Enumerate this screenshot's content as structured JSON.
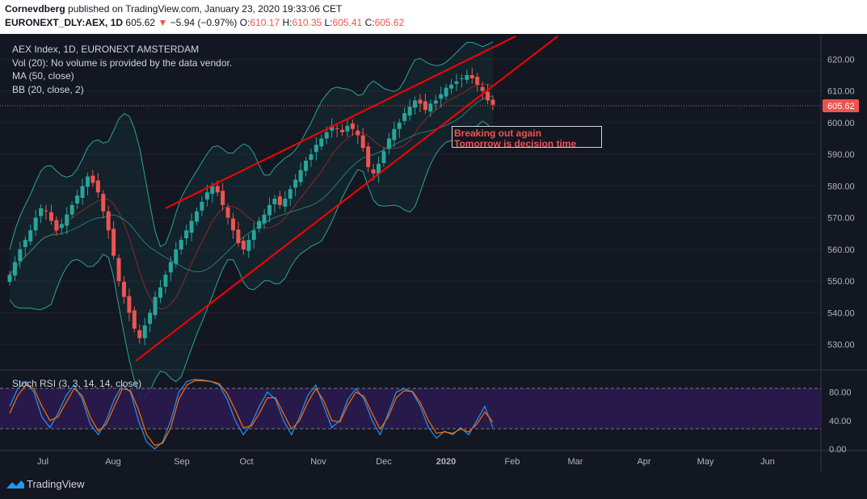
{
  "header": {
    "author": "Cornevdberg",
    "published_text": "published on TradingView.com, January 23, 2020 19:33:06 CET",
    "symbol": "EURONEXT_DLY:AEX, 1D",
    "last": "605.62",
    "change_arrow": "▼",
    "change": "−5.94 (−0.97%)",
    "o_label": "O:",
    "o": "610.17",
    "h_label": "H:",
    "h": "610.35",
    "l_label": "L:",
    "l": "605.41",
    "c_label": "C:",
    "c": "605.62"
  },
  "legend": {
    "title": "AEX Index, 1D, EURONEXT AMSTERDAM",
    "vol": "Vol (20): No volume is provided by the data vendor.",
    "ma": "MA (50, close)",
    "bb": "BB (20, close, 2)",
    "stoch": "Stoch RSI (3, 3, 14, 14, close)"
  },
  "annotation": {
    "line1": "Breaking out again",
    "line2": "Tomorrow is decision time"
  },
  "price_badge": "605.62",
  "footer": {
    "brand": "TradingView",
    "logo_icon": "tradingview-logo-icon"
  },
  "colors": {
    "background": "#131722",
    "up": "#26a69a",
    "down": "#ef5350",
    "trendline": "#ff0000",
    "ma": "#8b2a2a",
    "bollinger": "#26a69a",
    "stoch_k": "#2196f3",
    "stoch_d": "#ff6d00",
    "stoch_band": "#2a1b4f"
  },
  "chart_data": [
    {
      "type": "candlestick",
      "title": "AEX Index, 1D, EURONEXT AMSTERDAM",
      "ylim": [
        522,
        628
      ],
      "y_ticks": [
        "620.00",
        "610.00",
        "600.00",
        "590.00",
        "580.00",
        "570.00",
        "560.00",
        "550.00",
        "540.00",
        "530.00"
      ],
      "y_tick_values": [
        620,
        610,
        600,
        590,
        580,
        570,
        560,
        550,
        540,
        530
      ],
      "x_labels": [
        "Jul",
        "Aug",
        "Sep",
        "Oct",
        "Nov",
        "Dec",
        "2020",
        "Feb",
        "Mar",
        "Apr",
        "May",
        "Jun"
      ],
      "close_series": [
        552,
        556,
        560,
        563,
        566,
        570,
        573,
        572,
        569,
        566,
        568,
        571,
        574,
        577,
        580,
        583,
        581,
        578,
        572,
        566,
        558,
        550,
        545,
        540,
        535,
        532,
        536,
        540,
        545,
        548,
        552,
        556,
        560,
        563,
        566,
        569,
        572,
        575,
        578,
        580,
        578,
        574,
        570,
        566,
        562,
        560,
        563,
        566,
        569,
        571,
        574,
        576,
        574,
        576,
        579,
        582,
        585,
        588,
        590,
        593,
        595,
        597,
        599,
        598,
        597,
        599,
        598,
        596,
        592,
        586,
        584,
        587,
        591,
        595,
        598,
        600,
        603,
        605,
        607,
        606,
        604,
        606,
        607,
        609,
        611,
        612,
        613,
        614,
        615,
        614,
        612,
        610,
        607,
        605.62
      ],
      "annotations": [
        "Breaking out again",
        "Tomorrow is decision time"
      ]
    },
    {
      "type": "line",
      "title": "Stoch RSI (3, 3, 14, 14, close)",
      "ylim": [
        0,
        100
      ],
      "y_ticks": [
        "80.00",
        "40.00",
        "0.00"
      ],
      "y_tick_values": [
        80,
        40,
        0
      ],
      "band": [
        20,
        80
      ],
      "series_k": [
        60,
        85,
        95,
        80,
        45,
        30,
        50,
        75,
        90,
        70,
        35,
        20,
        40,
        70,
        90,
        80,
        40,
        10,
        0,
        10,
        40,
        80,
        95,
        98,
        97,
        95,
        90,
        70,
        40,
        20,
        35,
        60,
        80,
        70,
        40,
        20,
        45,
        75,
        90,
        60,
        30,
        40,
        70,
        85,
        70,
        40,
        20,
        50,
        80,
        85,
        80,
        60,
        30,
        15,
        25,
        20,
        30,
        20,
        40,
        60,
        30
      ],
      "series_d": [
        50,
        75,
        90,
        85,
        60,
        40,
        45,
        65,
        85,
        75,
        45,
        25,
        35,
        60,
        85,
        82,
        55,
        20,
        5,
        8,
        30,
        70,
        90,
        96,
        96,
        95,
        92,
        78,
        55,
        30,
        32,
        50,
        72,
        72,
        50,
        28,
        40,
        65,
        85,
        68,
        40,
        38,
        62,
        80,
        74,
        50,
        28,
        45,
        72,
        82,
        81,
        65,
        40,
        22,
        24,
        22,
        28,
        24,
        35,
        52,
        38
      ]
    }
  ]
}
